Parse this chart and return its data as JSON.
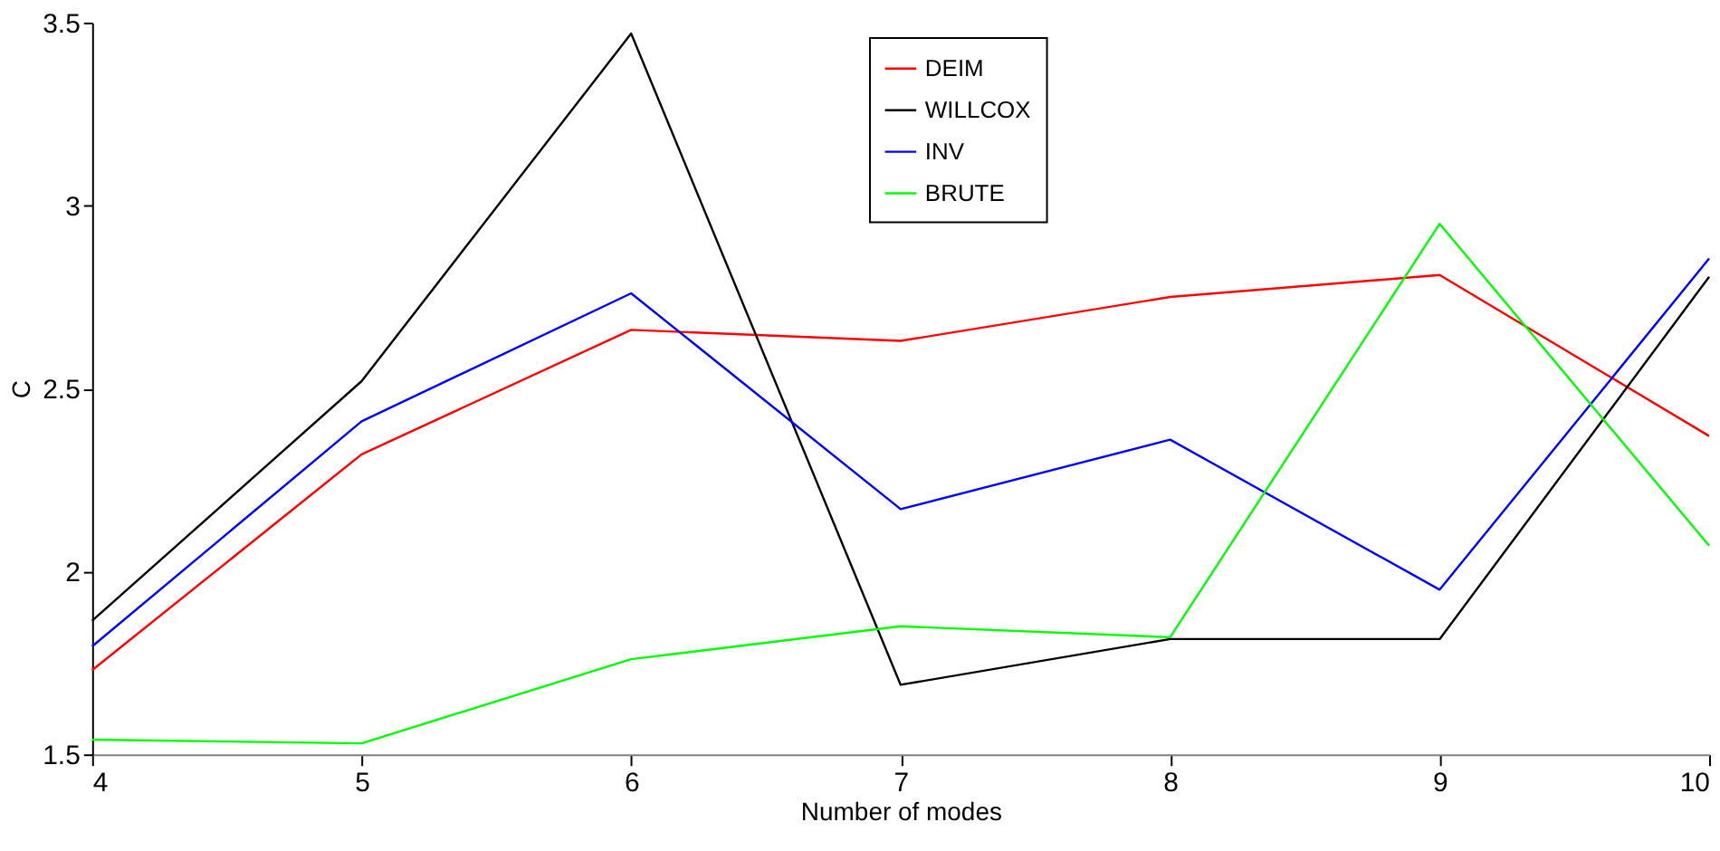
{
  "chart_data": {
    "type": "line",
    "xlabel": "Number of modes",
    "ylabel": "C",
    "x": [
      4,
      5,
      6,
      7,
      8,
      9,
      10
    ],
    "xlim": [
      4,
      10
    ],
    "xticks": [
      4,
      5,
      6,
      7,
      8,
      9,
      10
    ],
    "ylim": [
      1.5,
      3.5
    ],
    "yticks": [
      1.5,
      2,
      2.5,
      3,
      3.5
    ],
    "grid": false,
    "legend": "top",
    "marker": "none",
    "line_style": "solid",
    "series": [
      {
        "name": "DEIM",
        "color": "#ff0000",
        "values": [
          1.73,
          2.32,
          2.66,
          2.63,
          2.75,
          2.81,
          2.37
        ]
      },
      {
        "name": "WILLCOX",
        "color": "#000000",
        "values": [
          1.865,
          2.52,
          3.47,
          1.69,
          1.815,
          1.815,
          2.805
        ]
      },
      {
        "name": "INV",
        "color": "#0000ff",
        "values": [
          1.795,
          2.41,
          2.76,
          2.17,
          2.36,
          1.95,
          2.855
        ]
      },
      {
        "name": "BRUTE",
        "color": "#00ff00",
        "values": [
          1.54,
          1.53,
          1.76,
          1.85,
          1.82,
          2.95,
          2.07
        ]
      }
    ]
  }
}
